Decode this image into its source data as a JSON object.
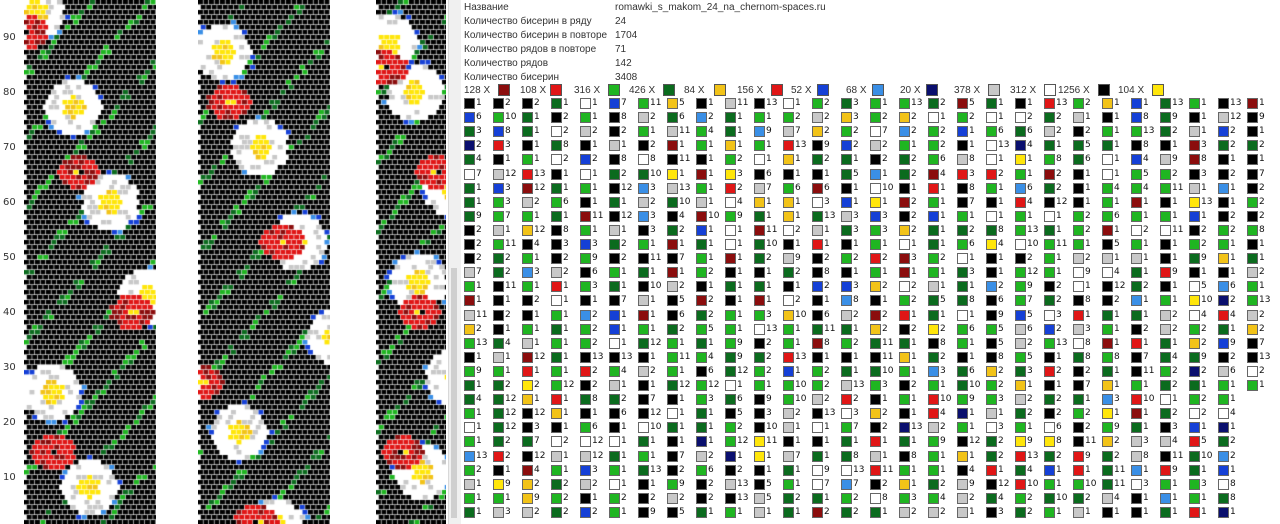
{
  "palette": {
    "black": "#000000",
    "darkgreen": "#0b6b1e",
    "green": "#1fb521",
    "red": "#e01616",
    "darkred": "#8b0d0d",
    "yellow": "#ffe60a",
    "gold": "#f2c318",
    "white": "#ffffff",
    "gray": "#c8c8c8",
    "lightblue": "#3a8fe6",
    "blue": "#1540d6",
    "navy": "#0a0f6e",
    "lightgreen": "#33cc44"
  },
  "ruler": {
    "ticks": [
      "90",
      "80",
      "70",
      "60",
      "50",
      "40",
      "30",
      "20",
      "10"
    ]
  },
  "info": {
    "rows": [
      {
        "label": "Название",
        "value": "romawki_s_makom_24_na_chernom-spaces.ru"
      },
      {
        "label": "Количество бисерин в ряду",
        "value": "24"
      },
      {
        "label": "Количество бисерин в повторе",
        "value": "1704"
      },
      {
        "label": "Количество рядов в повторе",
        "value": "71"
      },
      {
        "label": "Количество рядов",
        "value": "142"
      },
      {
        "label": "Количество бисерин",
        "value": "3408"
      }
    ]
  },
  "legend": [
    {
      "count": "128 X",
      "color": "#8b0d0d"
    },
    {
      "count": "108 X",
      "color": "#e01616"
    },
    {
      "count": "316 X",
      "color": "#1fb521"
    },
    {
      "count": "426 X",
      "color": "#0b6b1e"
    },
    {
      "count": "84 X",
      "color": "#f2c318"
    },
    {
      "count": "156 X",
      "color": "#e01616"
    },
    {
      "count": "52 X",
      "color": "#1540d6"
    },
    {
      "count": "68 X",
      "color": "#3a8fe6"
    },
    {
      "count": "20 X",
      "color": "#0a0f6e"
    },
    {
      "count": "378 X",
      "color": "#c8c8c8"
    },
    {
      "count": "312 X",
      "color": "#ffffff"
    },
    {
      "count": "1256 X",
      "color": "#000000"
    },
    {
      "count": "104 X",
      "color": "#ffe60a"
    }
  ],
  "sequence_columns": {
    "col_x": [
      464,
      493,
      522,
      551,
      580,
      609,
      638,
      667,
      696,
      725,
      754,
      783,
      812,
      841,
      870,
      899,
      928,
      957,
      986,
      1015,
      1044,
      1073,
      1102,
      1131,
      1160,
      1189,
      1218,
      1247
    ],
    "row_count": 30,
    "row_count_last": 21,
    "number_pool": [
      "1",
      "2",
      "1",
      "3",
      "1",
      "2",
      "1",
      "1",
      "4",
      "2",
      "1",
      "5",
      "1",
      "2",
      "10",
      "1",
      "3",
      "2",
      "6",
      "1",
      "8",
      "2",
      "1",
      "11",
      "1",
      "13",
      "12",
      "7",
      "1",
      "2",
      "9"
    ]
  }
}
